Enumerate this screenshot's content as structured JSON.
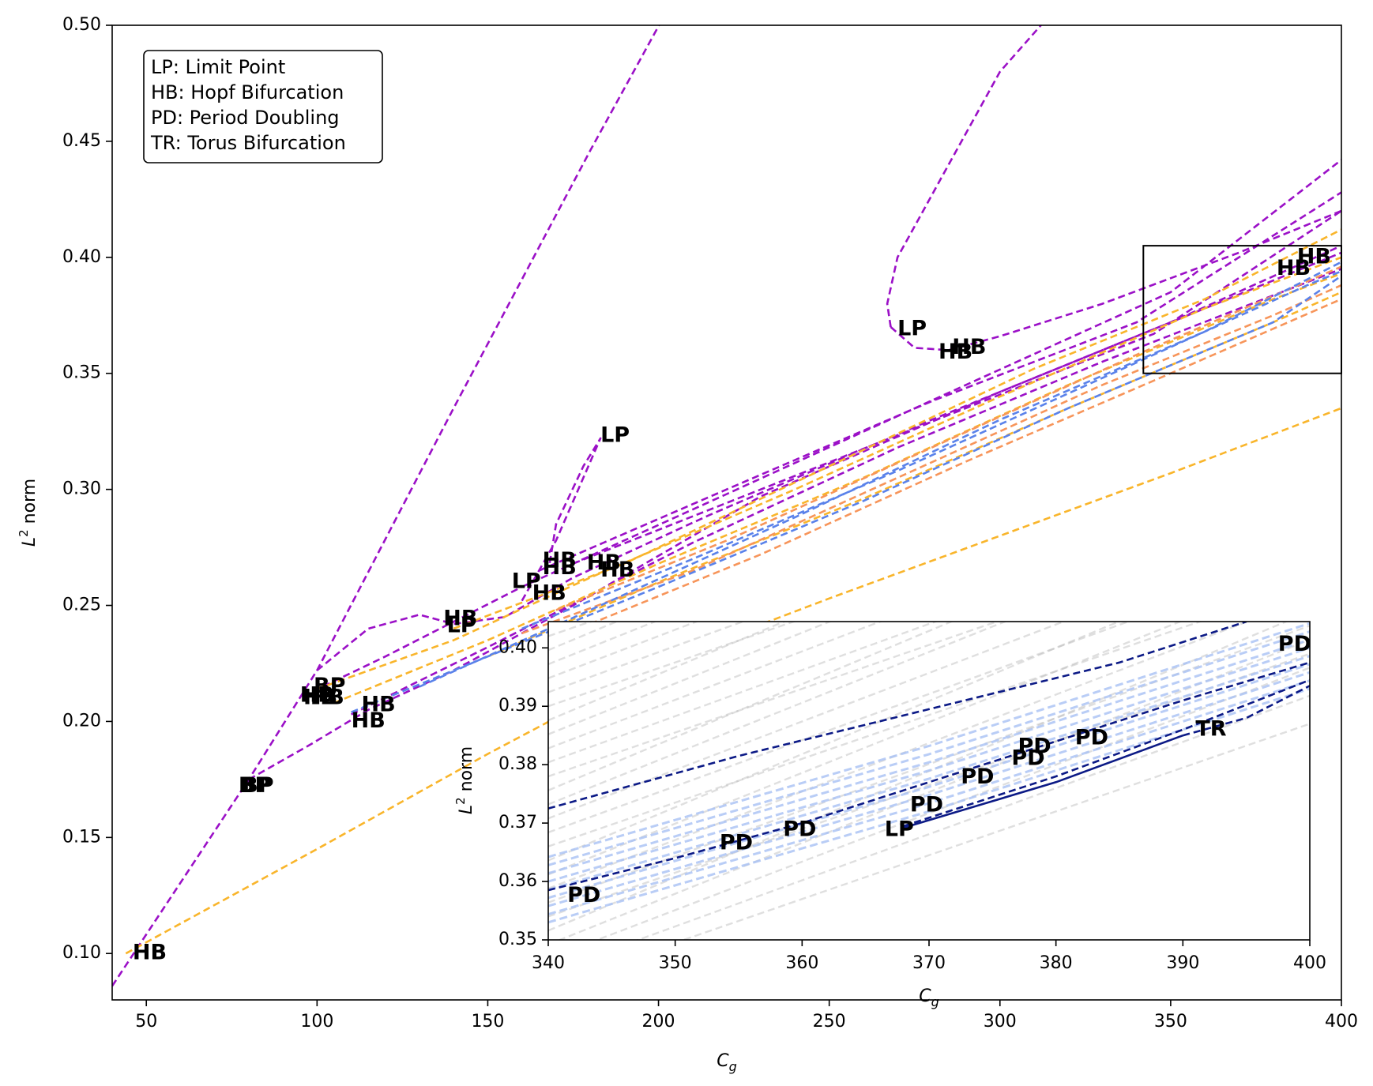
{
  "chart_data": [
    {
      "type": "line",
      "panel": "main",
      "xlabel_base": "C",
      "xlabel_sub": "g",
      "ylabel_prefix": "L",
      "ylabel_sup": "2",
      "ylabel_suffix": " norm",
      "xlim": [
        40,
        400
      ],
      "ylim": [
        0.08,
        0.5
      ],
      "xticks": [
        50,
        100,
        150,
        200,
        250,
        300,
        350,
        400
      ],
      "yticks": [
        "0.10",
        "0.15",
        "0.20",
        "0.25",
        "0.30",
        "0.35",
        "0.40",
        "0.45",
        "0.50"
      ],
      "legend_placement": "top-left",
      "legend_lines": [
        "LP: Limit Point",
        "HB: Hopf Bifurcation",
        "PD: Period Doubling",
        "TR: Torus Bifurcation"
      ],
      "colors": {
        "purple": "#9b10c7",
        "orange": "#f9b52b",
        "salmon": "#f7955a",
        "blue": "#5a82ea"
      },
      "zoom_box": {
        "x": [
          342,
          400
        ],
        "y": [
          0.35,
          0.405
        ]
      },
      "series": [
        {
          "color": "purple",
          "points": [
            [
              40,
              0.086
            ],
            [
              80,
              0.175
            ],
            [
              100,
              0.222
            ],
            [
              140,
              0.335
            ],
            [
              180,
              0.446
            ],
            [
              230,
              0.58
            ]
          ]
        },
        {
          "color": "purple",
          "points": [
            [
              100,
              0.222
            ],
            [
              115,
              0.24
            ],
            [
              130,
              0.246
            ],
            [
              140,
              0.242
            ],
            [
              155,
              0.245
            ],
            [
              175,
              0.262
            ],
            [
              215,
              0.289
            ],
            [
              280,
              0.33
            ],
            [
              340,
              0.366
            ],
            [
              400,
              0.402
            ]
          ]
        },
        {
          "color": "purple",
          "points": [
            [
              268,
              0.37
            ],
            [
              267,
              0.38
            ],
            [
              270,
              0.4
            ],
            [
              285,
              0.44
            ],
            [
              300,
              0.48
            ],
            [
              315,
              0.505
            ]
          ]
        },
        {
          "color": "purple",
          "points": [
            [
              268,
              0.37
            ],
            [
              275,
              0.361
            ],
            [
              285,
              0.36
            ],
            [
              300,
              0.366
            ],
            [
              330,
              0.38
            ],
            [
              370,
              0.402
            ],
            [
              400,
              0.42
            ]
          ]
        },
        {
          "color": "purple",
          "points": [
            [
              80,
              0.175
            ],
            [
              98,
              0.19
            ],
            [
              115,
              0.205
            ],
            [
              140,
              0.222
            ],
            [
              175,
              0.25
            ],
            [
              230,
              0.297
            ],
            [
              300,
              0.342
            ],
            [
              350,
              0.372
            ],
            [
              400,
              0.405
            ]
          ]
        },
        {
          "color": "purple",
          "points": [
            [
              96,
              0.211
            ],
            [
              120,
              0.228
            ],
            [
              160,
              0.258
            ],
            [
              220,
              0.298
            ],
            [
              290,
              0.345
            ],
            [
              350,
              0.385
            ],
            [
              400,
              0.442
            ]
          ]
        },
        {
          "color": "purple",
          "points": [
            [
              160,
              0.252
            ],
            [
              170,
              0.278
            ],
            [
              183,
              0.322
            ],
            [
              178,
              0.31
            ],
            [
              170,
              0.285
            ],
            [
              168,
              0.267
            ]
          ]
        },
        {
          "color": "purple",
          "points": [
            [
              165,
              0.265
            ],
            [
              220,
              0.3
            ],
            [
              280,
              0.338
            ],
            [
              340,
              0.372
            ],
            [
              400,
              0.428
            ]
          ]
        },
        {
          "color": "purple",
          "points": [
            [
              175,
              0.268
            ],
            [
              230,
              0.3
            ],
            [
              290,
              0.335
            ],
            [
              345,
              0.367
            ],
            [
              400,
              0.42
            ]
          ]
        },
        {
          "color": "purple",
          "points": [
            [
              110,
              0.203
            ],
            [
              150,
              0.232
            ],
            [
              210,
              0.277
            ],
            [
              270,
              0.318
            ],
            [
              330,
              0.355
            ],
            [
              400,
              0.395
            ]
          ]
        },
        {
          "color": "orange",
          "points": [
            [
              44,
              0.1
            ],
            [
              100,
              0.145
            ],
            [
              150,
              0.186
            ],
            [
              200,
              0.225
            ],
            [
              250,
              0.253
            ],
            [
              300,
              0.28
            ],
            [
              350,
              0.307
            ],
            [
              400,
              0.335
            ]
          ]
        },
        {
          "color": "orange",
          "points": [
            [
              100,
              0.214
            ],
            [
              140,
              0.235
            ],
            [
              180,
              0.262
            ],
            [
              240,
              0.3
            ],
            [
              300,
              0.34
            ],
            [
              360,
              0.378
            ],
            [
              400,
              0.4
            ]
          ]
        },
        {
          "color": "orange",
          "points": [
            [
              105,
              0.208
            ],
            [
              150,
              0.235
            ],
            [
              200,
              0.268
            ],
            [
              260,
              0.305
            ],
            [
              320,
              0.345
            ],
            [
              380,
              0.382
            ],
            [
              400,
              0.393
            ]
          ]
        },
        {
          "color": "orange",
          "points": [
            [
              140,
              0.24
            ],
            [
              190,
              0.268
            ],
            [
              250,
              0.31
            ],
            [
              310,
              0.352
            ],
            [
              360,
              0.382
            ],
            [
              400,
              0.412
            ]
          ]
        },
        {
          "color": "orange",
          "points": [
            [
              150,
              0.228
            ],
            [
              200,
              0.26
            ],
            [
              260,
              0.296
            ],
            [
              320,
              0.335
            ],
            [
              380,
              0.372
            ],
            [
              400,
              0.385
            ]
          ]
        },
        {
          "color": "salmon",
          "points": [
            [
              160,
              0.238
            ],
            [
              210,
              0.265
            ],
            [
              270,
              0.305
            ],
            [
              330,
              0.345
            ],
            [
              380,
              0.375
            ],
            [
              400,
              0.388
            ]
          ]
        },
        {
          "color": "salmon",
          "points": [
            [
              170,
              0.248
            ],
            [
              220,
              0.278
            ],
            [
              280,
              0.318
            ],
            [
              340,
              0.358
            ],
            [
              400,
              0.396
            ]
          ]
        },
        {
          "color": "salmon",
          "points": [
            [
              180,
              0.242
            ],
            [
              230,
              0.272
            ],
            [
              290,
              0.312
            ],
            [
              350,
              0.35
            ],
            [
              400,
              0.382
            ]
          ]
        },
        {
          "color": "blue",
          "points": [
            [
              110,
              0.204
            ],
            [
              150,
              0.228
            ],
            [
              200,
              0.258
            ],
            [
              260,
              0.295
            ],
            [
              320,
              0.335
            ],
            [
              380,
              0.372
            ],
            [
              400,
              0.392
            ]
          ]
        },
        {
          "color": "blue",
          "points": [
            [
              130,
              0.215
            ],
            [
              180,
              0.248
            ],
            [
              240,
              0.288
            ],
            [
              300,
              0.33
            ],
            [
              360,
              0.368
            ],
            [
              400,
              0.398
            ]
          ]
        },
        {
          "color": "blue",
          "points": [
            [
              160,
              0.24
            ],
            [
              210,
              0.27
            ],
            [
              270,
              0.308
            ],
            [
              330,
              0.348
            ],
            [
              390,
              0.388
            ],
            [
              400,
              0.394
            ]
          ]
        }
      ],
      "annotations": [
        {
          "text": "HB",
          "x": 46,
          "y": 0.1
        },
        {
          "text": "BP",
          "x": 77,
          "y": 0.172
        },
        {
          "text": "BP",
          "x": 78,
          "y": 0.172
        },
        {
          "text": "BP",
          "x": 99,
          "y": 0.215
        },
        {
          "text": "HB",
          "x": 95,
          "y": 0.211
        },
        {
          "text": "HB",
          "x": 96,
          "y": 0.21
        },
        {
          "text": "HB",
          "x": 98,
          "y": 0.21
        },
        {
          "text": "HB",
          "x": 113,
          "y": 0.207
        },
        {
          "text": "HB",
          "x": 110,
          "y": 0.2
        },
        {
          "text": "HB",
          "x": 137,
          "y": 0.244
        },
        {
          "text": "LP",
          "x": 138,
          "y": 0.241
        },
        {
          "text": "LP",
          "x": 157,
          "y": 0.26
        },
        {
          "text": "HB",
          "x": 163,
          "y": 0.255
        },
        {
          "text": "HB",
          "x": 166,
          "y": 0.269
        },
        {
          "text": "HB",
          "x": 166,
          "y": 0.266
        },
        {
          "text": "HB",
          "x": 179,
          "y": 0.268
        },
        {
          "text": "HB",
          "x": 183,
          "y": 0.265
        },
        {
          "text": "LP",
          "x": 183,
          "y": 0.323
        },
        {
          "text": "LP",
          "x": 270,
          "y": 0.369
        },
        {
          "text": "HB",
          "x": 282,
          "y": 0.359
        },
        {
          "text": "HB",
          "x": 286,
          "y": 0.361
        },
        {
          "text": "HB",
          "x": 381,
          "y": 0.395
        },
        {
          "text": "HB",
          "x": 387,
          "y": 0.4
        }
      ]
    },
    {
      "type": "line",
      "panel": "inset",
      "xlabel_base": "C",
      "xlabel_sub": "g",
      "ylabel_prefix": "L",
      "ylabel_sup": "2",
      "ylabel_suffix": " norm",
      "xlim": [
        340,
        400
      ],
      "ylim": [
        0.35,
        0.4045
      ],
      "xticks": [
        340,
        350,
        360,
        370,
        380,
        390,
        400
      ],
      "yticks": [
        "0.35",
        "0.36",
        "0.37",
        "0.38",
        "0.39",
        "0.40"
      ],
      "colors": {
        "navy": "#0c1a86",
        "lightblue": "#a8c1f4",
        "gray": "#b8b8b8"
      },
      "series": [
        {
          "color": "navy",
          "style": "dashed",
          "points": [
            [
              340,
              0.3725
            ],
            [
              355,
              0.3815
            ],
            [
              370,
              0.3895
            ],
            [
              385,
              0.3975
            ],
            [
              395,
              0.4045
            ]
          ]
        },
        {
          "color": "navy",
          "style": "dashed",
          "points": [
            [
              340,
              0.3585
            ],
            [
              350,
              0.364
            ],
            [
              360,
              0.37
            ],
            [
              370,
              0.377
            ],
            [
              380,
              0.384
            ],
            [
              390,
              0.391
            ],
            [
              400,
              0.3975
            ]
          ]
        },
        {
          "color": "navy",
          "style": "dashed",
          "points": [
            [
              368,
              0.3695
            ],
            [
              380,
              0.378
            ],
            [
              390,
              0.386
            ],
            [
              400,
              0.3945
            ]
          ]
        },
        {
          "color": "navy",
          "style": "solid",
          "points": [
            [
              368,
              0.3692
            ],
            [
              380,
              0.377
            ],
            [
              390,
              0.385
            ]
          ]
        },
        {
          "color": "navy",
          "style": "dashed",
          "points": [
            [
              390,
              0.385
            ],
            [
              395,
              0.388
            ],
            [
              400,
              0.3935
            ]
          ]
        }
      ],
      "annotations": [
        {
          "text": "PD",
          "x": 341.5,
          "y": 0.3575
        },
        {
          "text": "PD",
          "x": 353.5,
          "y": 0.3665
        },
        {
          "text": "PD",
          "x": 358.5,
          "y": 0.3688
        },
        {
          "text": "LP",
          "x": 366.5,
          "y": 0.3688
        },
        {
          "text": "PD",
          "x": 368.5,
          "y": 0.373
        },
        {
          "text": "PD",
          "x": 372.5,
          "y": 0.3778
        },
        {
          "text": "PD",
          "x": 376.5,
          "y": 0.381
        },
        {
          "text": "PD",
          "x": 377,
          "y": 0.383
        },
        {
          "text": "PD",
          "x": 381.5,
          "y": 0.3845
        },
        {
          "text": "TR",
          "x": 391,
          "y": 0.386
        },
        {
          "text": "PD",
          "x": 397.5,
          "y": 0.4005
        }
      ]
    }
  ]
}
